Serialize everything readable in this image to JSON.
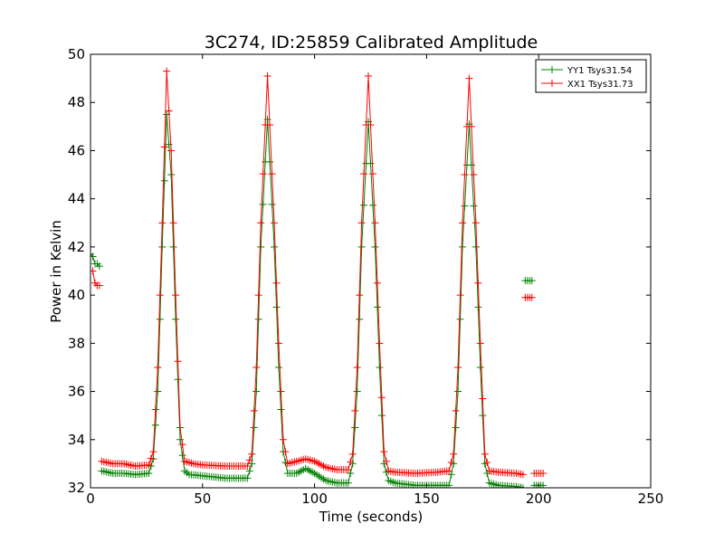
{
  "chart_data": {
    "type": "line",
    "title": "3C274, ID:25859 Calibrated Amplitude",
    "xlabel": "Time (seconds)",
    "ylabel": "Power in Kelvin",
    "xlim": [
      0,
      250
    ],
    "ylim": [
      32,
      50
    ],
    "xticks": [
      0,
      50,
      100,
      150,
      200,
      250
    ],
    "yticks": [
      32,
      34,
      36,
      38,
      40,
      42,
      44,
      46,
      48,
      50
    ],
    "grid": false,
    "legend": "top-right",
    "marker": "+",
    "sample_step": 1.0,
    "series": [
      {
        "name": "YY1 Tsys31.54",
        "color": "#008000",
        "segments": [
          [
            [
              0,
              41.7
            ],
            [
              1,
              41.6
            ],
            [
              2,
              41.3
            ],
            [
              3,
              41.3
            ],
            [
              4,
              41.2
            ]
          ],
          [
            [
              5,
              32.7
            ],
            [
              10,
              32.6
            ],
            [
              15,
              32.6
            ],
            [
              20,
              32.55
            ],
            [
              26,
              32.6
            ],
            [
              28,
              33.2
            ],
            [
              30,
              36
            ],
            [
              32,
              42
            ],
            [
              34,
              47.5
            ],
            [
              36,
              45
            ],
            [
              38,
              39
            ],
            [
              40,
              34
            ],
            [
              42,
              32.7
            ],
            [
              44,
              32.55
            ],
            [
              50,
              32.5
            ],
            [
              60,
              32.4
            ],
            [
              70,
              32.4
            ],
            [
              72,
              33
            ],
            [
              74,
              36
            ],
            [
              76,
              42
            ],
            [
              79,
              47.3
            ],
            [
              82,
              42
            ],
            [
              84,
              37
            ],
            [
              86,
              33.5
            ],
            [
              88,
              32.6
            ],
            [
              92,
              32.6
            ],
            [
              96,
              32.8
            ],
            [
              100,
              32.6
            ],
            [
              105,
              32.3
            ],
            [
              110,
              32.2
            ],
            [
              115,
              32.2
            ],
            [
              117,
              33
            ],
            [
              119,
              36
            ],
            [
              121,
              42
            ],
            [
              124,
              47.2
            ],
            [
              127,
              42
            ],
            [
              129,
              37
            ],
            [
              131,
              33
            ],
            [
              133,
              32.3
            ],
            [
              136,
              32.2
            ],
            [
              145,
              32.1
            ],
            [
              155,
              32.1
            ],
            [
              160,
              32.1
            ],
            [
              162,
              33
            ],
            [
              164,
              36
            ],
            [
              166,
              42
            ],
            [
              169,
              47.1
            ],
            [
              172,
              42
            ],
            [
              174,
              37
            ],
            [
              176,
              33
            ],
            [
              178,
              32.2
            ],
            [
              182,
              32.1
            ],
            [
              190,
              32.05
            ],
            [
              193,
              32.0
            ]
          ],
          [
            [
              194,
              40.6
            ],
            [
              195,
              40.6
            ],
            [
              196,
              40.6
            ],
            [
              197,
              40.6
            ]
          ],
          [
            [
              198,
              32.1
            ],
            [
              199,
              32.1
            ],
            [
              200,
              32.1
            ],
            [
              201,
              32.1
            ],
            [
              202,
              32.1
            ]
          ]
        ]
      },
      {
        "name": "XX1 Tsys31.73",
        "color": "#ff0000",
        "segments": [
          [
            [
              0,
              41.0
            ],
            [
              1,
              41.0
            ],
            [
              2,
              40.5
            ],
            [
              3,
              40.4
            ],
            [
              4,
              40.4
            ]
          ],
          [
            [
              5,
              33.1
            ],
            [
              10,
              33.0
            ],
            [
              15,
              33.0
            ],
            [
              20,
              32.9
            ],
            [
              26,
              32.95
            ],
            [
              28,
              33.5
            ],
            [
              30,
              37
            ],
            [
              32,
              43
            ],
            [
              34,
              49.3
            ],
            [
              36,
              46
            ],
            [
              38,
              40
            ],
            [
              40,
              34.5
            ],
            [
              42,
              33.1
            ],
            [
              46,
              33.0
            ],
            [
              50,
              32.95
            ],
            [
              60,
              32.9
            ],
            [
              70,
              32.9
            ],
            [
              72,
              33.4
            ],
            [
              74,
              37
            ],
            [
              76,
              43
            ],
            [
              79,
              49.1
            ],
            [
              82,
              43
            ],
            [
              84,
              38
            ],
            [
              86,
              34
            ],
            [
              88,
              33
            ],
            [
              92,
              33.1
            ],
            [
              96,
              33.2
            ],
            [
              100,
              33.1
            ],
            [
              105,
              32.85
            ],
            [
              110,
              32.75
            ],
            [
              115,
              32.75
            ],
            [
              117,
              33.4
            ],
            [
              119,
              37
            ],
            [
              121,
              43
            ],
            [
              124,
              49.1
            ],
            [
              127,
              43
            ],
            [
              129,
              38
            ],
            [
              131,
              33.5
            ],
            [
              133,
              32.7
            ],
            [
              136,
              32.65
            ],
            [
              145,
              32.6
            ],
            [
              155,
              32.65
            ],
            [
              160,
              32.7
            ],
            [
              162,
              33.4
            ],
            [
              164,
              37
            ],
            [
              166,
              43
            ],
            [
              169,
              49.0
            ],
            [
              172,
              43
            ],
            [
              174,
              38
            ],
            [
              176,
              33.4
            ],
            [
              178,
              32.7
            ],
            [
              182,
              32.65
            ],
            [
              190,
              32.6
            ],
            [
              193,
              32.55
            ]
          ],
          [
            [
              194,
              39.9
            ],
            [
              195,
              39.9
            ],
            [
              196,
              39.9
            ],
            [
              197,
              39.9
            ]
          ],
          [
            [
              198,
              32.6
            ],
            [
              199,
              32.6
            ],
            [
              200,
              32.6
            ],
            [
              201,
              32.6
            ],
            [
              202,
              32.6
            ]
          ]
        ]
      }
    ]
  }
}
